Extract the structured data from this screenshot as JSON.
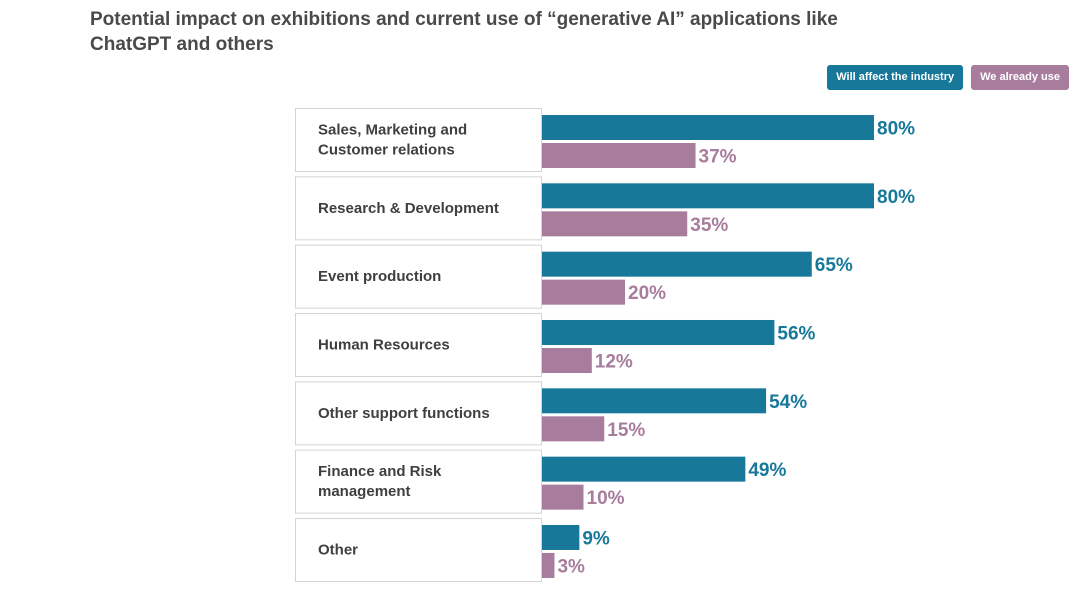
{
  "chart_data": {
    "type": "bar",
    "orientation": "horizontal",
    "title": "Potential impact on exhibitions and current use of “generative AI” applications like ChatGPT and others",
    "legend_position": "top-right",
    "categories": [
      "Sales, Marketing and Customer relations",
      "Research & Development",
      "Event production",
      "Human Resources",
      "Other support functions",
      "Finance and Risk management",
      "Other"
    ],
    "category_lines": [
      [
        "Sales, Marketing and",
        "Customer relations"
      ],
      [
        "Research & Development"
      ],
      [
        "Event production"
      ],
      [
        "Human Resources"
      ],
      [
        "Other support functions"
      ],
      [
        "Finance and Risk",
        "management"
      ],
      [
        "Other"
      ]
    ],
    "series": [
      {
        "name": "Will affect the industry",
        "color": "#17789a",
        "values": [
          80,
          80,
          65,
          56,
          54,
          49,
          9
        ]
      },
      {
        "name": "We already use",
        "color": "#a77c9c",
        "values": [
          37,
          35,
          20,
          12,
          15,
          10,
          3
        ]
      }
    ],
    "value_suffix": "%",
    "xlim": [
      0,
      100
    ],
    "grid": false
  }
}
